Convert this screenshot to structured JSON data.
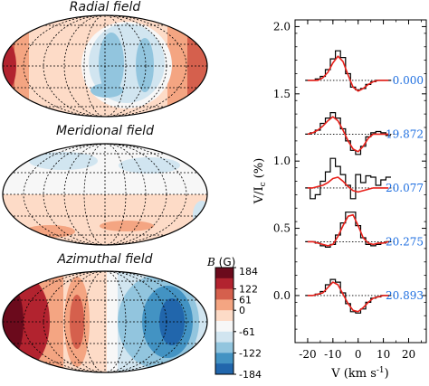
{
  "maps": [
    {
      "id": "radial",
      "title": "Radial field"
    },
    {
      "id": "meridional",
      "title": "Meridional field"
    },
    {
      "id": "azimuthal",
      "title": "Azimuthal field"
    }
  ],
  "colorbar": {
    "label_var": "B",
    "label_unit": "(G)",
    "ticks": [
      "184",
      "122",
      "61",
      "0",
      "-61",
      "-122",
      "-184"
    ],
    "levels": [
      184,
      122,
      61,
      0,
      -61,
      -122,
      -184
    ],
    "colors": [
      "#6b0a1c",
      "#b2232f",
      "#d5604d",
      "#f4a582",
      "#fddbc7",
      "#f7f7f7",
      "#d1e5f0",
      "#92c5de",
      "#4393c3",
      "#2166ac"
    ]
  },
  "chart_data": {
    "type": "line",
    "xlabel": "V (km s⁻¹)",
    "ylabel": "V/Ic (%)",
    "xlim": [
      -25,
      27
    ],
    "ylim": [
      -0.35,
      2.05
    ],
    "xticks": [
      -20,
      -10,
      0,
      10,
      20
    ],
    "yticks": [
      0.0,
      0.5,
      1.0,
      1.5,
      2.0
    ],
    "ytick_labels": [
      "0.0",
      "0.5",
      "1.0",
      "1.5",
      "2.0"
    ],
    "xtick_labels": [
      "-20",
      "-10",
      "0",
      "10",
      "20"
    ],
    "offsets": [
      1.6,
      1.2,
      0.8,
      0.4,
      0.0
    ],
    "phase_labels": [
      "0.000",
      "19.872",
      "20.077",
      "20.275",
      "20.893"
    ],
    "phase_color": "#1f6fe0",
    "model_color": "#e8201a",
    "obs_color": "#000000",
    "x": [
      -20,
      -18,
      -16,
      -14,
      -12,
      -10,
      -8,
      -6,
      -4,
      -2,
      0,
      2,
      4,
      6,
      8,
      10,
      12
    ],
    "series": [
      {
        "offset": 1.6,
        "observed": [
          0.0,
          0.0,
          0.01,
          0.03,
          0.08,
          0.16,
          0.22,
          0.17,
          0.05,
          -0.05,
          -0.07,
          -0.06,
          -0.03,
          -0.01,
          0.0,
          0.0,
          0.0
        ],
        "model": [
          0.0,
          0.0,
          0.0,
          0.02,
          0.06,
          0.13,
          0.18,
          0.14,
          0.04,
          -0.05,
          -0.08,
          -0.06,
          -0.03,
          -0.01,
          0.0,
          0.0,
          0.0
        ]
      },
      {
        "offset": 1.2,
        "observed": [
          0.0,
          0.01,
          0.03,
          0.08,
          0.12,
          0.16,
          0.12,
          0.04,
          -0.05,
          -0.12,
          -0.15,
          -0.09,
          -0.02,
          0.01,
          0.02,
          0.01,
          -0.01
        ],
        "model": [
          0.0,
          0.01,
          0.03,
          0.06,
          0.1,
          0.13,
          0.1,
          0.03,
          -0.05,
          -0.11,
          -0.13,
          -0.09,
          -0.03,
          0.0,
          0.0,
          0.0,
          0.0
        ]
      },
      {
        "offset": 0.8,
        "observed": [
          0.0,
          -0.08,
          -0.05,
          0.05,
          0.12,
          0.22,
          0.16,
          0.1,
          0.02,
          -0.08,
          0.1,
          0.04,
          0.09,
          0.08,
          0.02,
          0.06,
          0.08
        ],
        "model": [
          0.0,
          0.0,
          0.01,
          0.02,
          0.04,
          0.07,
          0.08,
          0.05,
          0.01,
          -0.02,
          -0.03,
          -0.02,
          -0.01,
          0.0,
          0.0,
          0.0,
          0.0
        ]
      },
      {
        "offset": 0.4,
        "observed": [
          0.0,
          0.0,
          -0.01,
          -0.03,
          -0.04,
          -0.02,
          0.05,
          0.14,
          0.22,
          0.22,
          0.12,
          0.03,
          -0.02,
          -0.03,
          -0.02,
          -0.01,
          0.0
        ],
        "model": [
          0.0,
          0.0,
          -0.01,
          -0.02,
          -0.03,
          -0.02,
          0.04,
          0.12,
          0.19,
          0.2,
          0.12,
          0.03,
          -0.01,
          -0.02,
          -0.01,
          -0.01,
          0.0
        ],
        "note": ""
      },
      {
        "offset": 0.0,
        "observed": [
          0.0,
          0.0,
          0.01,
          0.03,
          0.08,
          0.12,
          0.1,
          0.02,
          -0.06,
          -0.12,
          -0.13,
          -0.1,
          -0.05,
          -0.02,
          -0.01,
          0.0,
          0.0
        ],
        "model": [
          0.0,
          0.0,
          0.01,
          0.02,
          0.06,
          0.1,
          0.08,
          0.01,
          -0.06,
          -0.11,
          -0.12,
          -0.09,
          -0.05,
          -0.02,
          -0.01,
          0.0,
          0.0
        ]
      }
    ]
  }
}
